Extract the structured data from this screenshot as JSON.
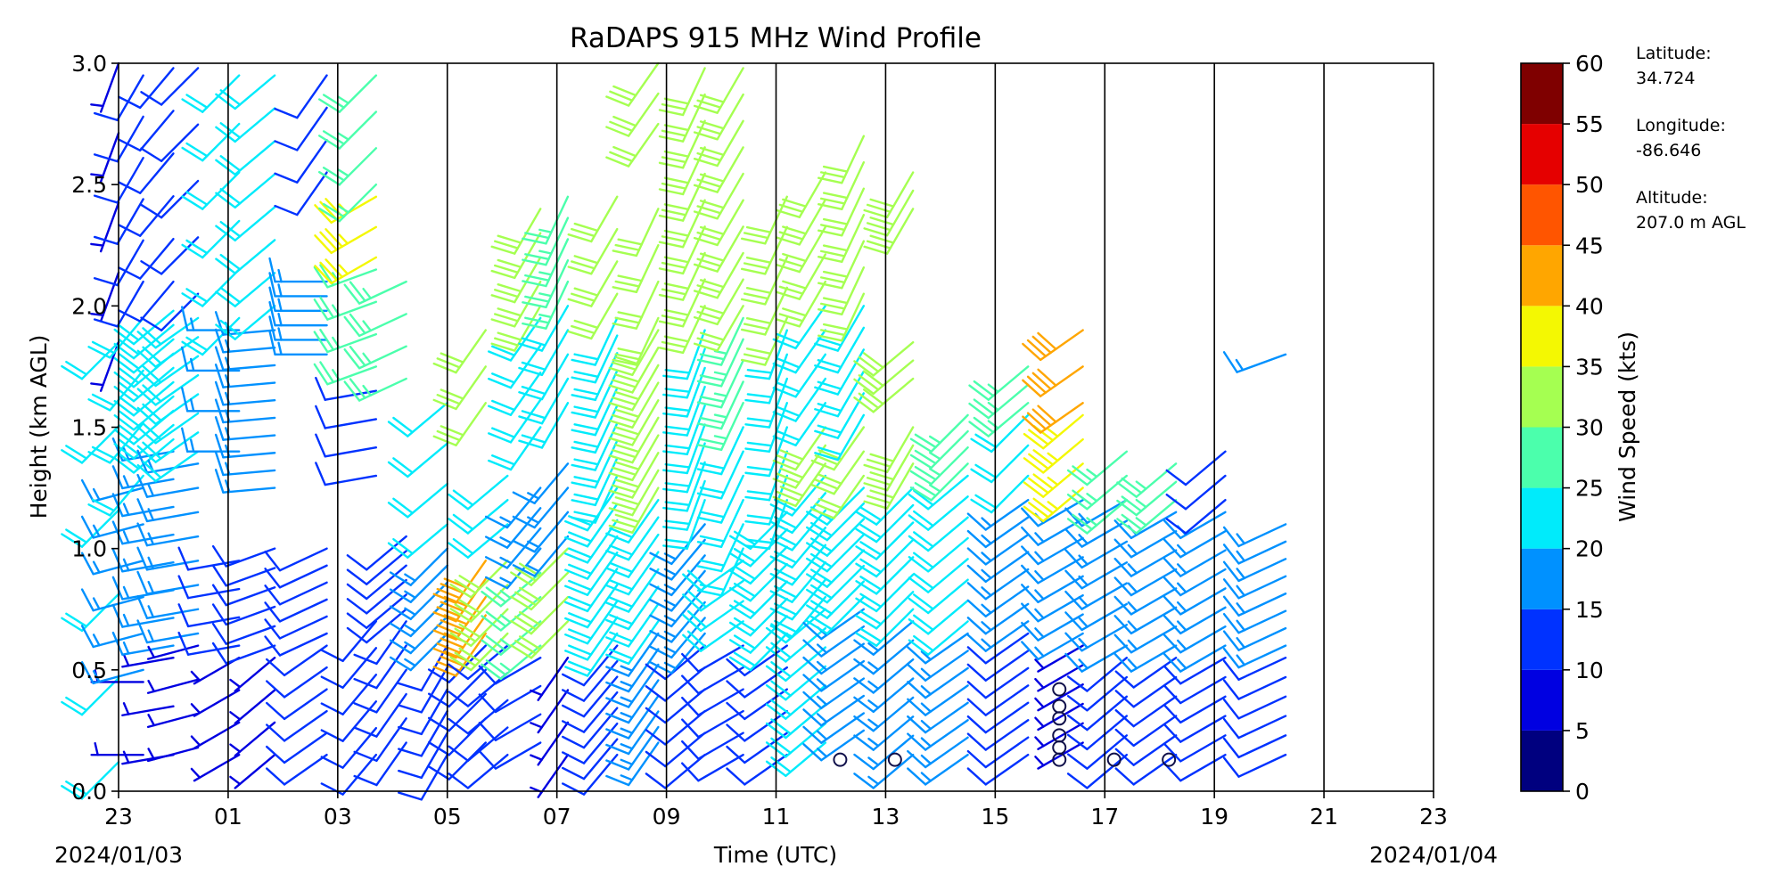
{
  "chart_data": {
    "type": "wind_barb_profile",
    "title": "RaDAPS 915 MHz Wind Profile",
    "xlabel": "Time (UTC)",
    "ylabel": "Height (km AGL)",
    "x_ticks": [
      "23",
      "01",
      "03",
      "05",
      "07",
      "09",
      "11",
      "13",
      "15",
      "17",
      "19",
      "21",
      "23"
    ],
    "start_date": "2024/01/03",
    "end_date": "2024/01/04",
    "y_ticks": [
      "0.0",
      "0.5",
      "1.0",
      "1.5",
      "2.0",
      "2.5",
      "3.0"
    ],
    "xlim_hours": [
      0,
      24
    ],
    "ylim_km": [
      0,
      3
    ],
    "colorbar": {
      "label": "Wind Speed (kts)",
      "levels": [
        0,
        5,
        10,
        15,
        20,
        25,
        30,
        35,
        40,
        45,
        50,
        55,
        60
      ],
      "tick_labels": [
        "0",
        "5",
        "10",
        "15",
        "20",
        "25",
        "30",
        "35",
        "40",
        "45",
        "50",
        "55",
        "60"
      ],
      "colors": [
        "#00007f",
        "#0000e1",
        "#0032ff",
        "#0091ff",
        "#00ebfb",
        "#4bffac",
        "#a5ff51",
        "#f4f802",
        "#ffa600",
        "#ff5500",
        "#e50000",
        "#7f0000"
      ]
    },
    "site": {
      "latitude_label": "Latitude:",
      "latitude": "34.724",
      "longitude_label": "Longitude:",
      "longitude": "-86.646",
      "altitude_label": "Altitude:",
      "altitude": "207.0 m AGL"
    },
    "calm_points": [
      {
        "t": 13.17,
        "h": 0.13
      },
      {
        "t": 14.17,
        "h": 0.13
      },
      {
        "t": 17.17,
        "h": 0.13
      },
      {
        "t": 17.17,
        "h": 0.18
      },
      {
        "t": 17.17,
        "h": 0.23
      },
      {
        "t": 17.17,
        "h": 0.3
      },
      {
        "t": 17.17,
        "h": 0.35
      },
      {
        "t": 17.17,
        "h": 0.42
      },
      {
        "t": 18.17,
        "h": 0.13
      },
      {
        "t": 19.17,
        "h": 0.13
      }
    ],
    "profiles": [
      {
        "t": 0.0,
        "segments": [
          [
            0.12,
            1.85,
            225,
            6,
            22
          ],
          [
            1.85,
            3.0,
            200,
            5,
            9
          ]
        ]
      },
      {
        "t": 0.45,
        "segments": [
          [
            0.15,
            0.45,
            270,
            2,
            8
          ],
          [
            0.5,
            1.25,
            255,
            6,
            16
          ],
          [
            1.3,
            1.95,
            220,
            4,
            20
          ],
          [
            2.1,
            2.95,
            210,
            6,
            10
          ]
        ]
      },
      {
        "t": 1.0,
        "segments": [
          [
            0.15,
            0.55,
            260,
            3,
            8
          ],
          [
            0.6,
            1.4,
            260,
            8,
            15
          ],
          [
            1.45,
            1.98,
            230,
            10,
            20
          ],
          [
            2.1,
            2.98,
            220,
            6,
            14
          ]
        ]
      },
      {
        "t": 1.45,
        "segments": [
          [
            0.18,
            0.6,
            255,
            4,
            9
          ],
          [
            0.65,
            1.35,
            260,
            8,
            16
          ],
          [
            1.4,
            1.95,
            235,
            8,
            22
          ],
          [
            2.05,
            2.98,
            225,
            5,
            13
          ]
        ]
      },
      {
        "t": 2.2,
        "segments": [
          [
            0.15,
            0.55,
            240,
            4,
            8
          ],
          [
            0.6,
            0.95,
            260,
            4,
            12
          ],
          [
            1.4,
            1.9,
            270,
            4,
            18
          ],
          [
            1.95,
            2.95,
            225,
            6,
            20
          ]
        ]
      },
      {
        "t": 2.85,
        "segments": [
          [
            0.15,
            0.55,
            230,
            4,
            9
          ],
          [
            0.6,
            1.0,
            250,
            6,
            13
          ],
          [
            1.25,
            1.9,
            265,
            10,
            19
          ],
          [
            2.0,
            2.95,
            230,
            8,
            22
          ]
        ]
      },
      {
        "t": 3.8,
        "segments": [
          [
            0.15,
            0.6,
            235,
            6,
            11
          ],
          [
            0.65,
            1.0,
            245,
            6,
            14
          ],
          [
            1.8,
            2.1,
            270,
            6,
            18
          ],
          [
            2.55,
            2.95,
            215,
            4,
            14
          ]
        ]
      },
      {
        "t": 4.7,
        "segments": [
          [
            0.15,
            0.7,
            220,
            6,
            11
          ],
          [
            1.3,
            1.65,
            260,
            4,
            14
          ],
          [
            1.75,
            2.15,
            250,
            4,
            25
          ],
          [
            2.2,
            2.45,
            240,
            3,
            38
          ],
          [
            2.5,
            2.95,
            225,
            4,
            28
          ]
        ]
      },
      {
        "t": 5.25,
        "segments": [
          [
            0.2,
            0.7,
            215,
            6,
            11
          ],
          [
            0.75,
            1.05,
            230,
            6,
            14
          ],
          [
            1.7,
            2.1,
            245,
            4,
            27
          ]
        ]
      },
      {
        "t": 6.0,
        "segments": [
          [
            0.15,
            0.6,
            210,
            6,
            12
          ],
          [
            0.65,
            1.0,
            225,
            6,
            18
          ],
          [
            1.1,
            1.6,
            230,
            4,
            20
          ]
        ]
      },
      {
        "t": 6.7,
        "segments": [
          [
            0.2,
            0.6,
            225,
            5,
            11
          ],
          [
            0.65,
            0.95,
            215,
            5,
            40
          ],
          [
            1.6,
            1.9,
            215,
            3,
            32
          ]
        ]
      },
      {
        "t": 7.1,
        "segments": [
          [
            0.15,
            0.6,
            230,
            5,
            10
          ],
          [
            0.65,
            0.95,
            225,
            4,
            30
          ],
          [
            1.1,
            1.3,
            230,
            3,
            22
          ]
        ]
      },
      {
        "t": 7.7,
        "segments": [
          [
            0.2,
            0.55,
            240,
            4,
            12
          ],
          [
            0.6,
            0.9,
            230,
            4,
            28
          ],
          [
            1.0,
            1.25,
            220,
            4,
            16
          ],
          [
            1.5,
            1.95,
            215,
            5,
            24
          ],
          [
            2.0,
            2.4,
            210,
            5,
            30
          ]
        ]
      },
      {
        "t": 8.2,
        "segments": [
          [
            0.15,
            0.55,
            215,
            4,
            9
          ],
          [
            0.7,
            1.0,
            225,
            4,
            30
          ],
          [
            1.05,
            1.35,
            220,
            4,
            18
          ],
          [
            1.6,
            2.0,
            210,
            5,
            24
          ],
          [
            2.1,
            2.45,
            205,
            5,
            28
          ]
        ]
      },
      {
        "t": 9.1,
        "segments": [
          [
            0.15,
            0.6,
            220,
            8,
            12
          ],
          [
            0.65,
            1.25,
            215,
            10,
            20
          ],
          [
            1.3,
            1.95,
            205,
            10,
            24
          ],
          [
            2.05,
            2.45,
            210,
            4,
            30
          ]
        ]
      },
      {
        "t": 9.85,
        "segments": [
          [
            0.2,
            0.65,
            215,
            8,
            18
          ],
          [
            0.7,
            1.2,
            215,
            8,
            22
          ],
          [
            1.25,
            1.9,
            210,
            10,
            30
          ],
          [
            1.95,
            2.4,
            205,
            4,
            32
          ],
          [
            2.75,
            3.0,
            215,
            3,
            32
          ]
        ]
      },
      {
        "t": 10.7,
        "segments": [
          [
            0.15,
            0.6,
            230,
            6,
            14
          ],
          [
            0.65,
            1.1,
            220,
            8,
            18
          ],
          [
            1.2,
            1.9,
            200,
            10,
            24
          ],
          [
            2.0,
            2.98,
            205,
            10,
            30
          ]
        ]
      },
      {
        "t": 11.4,
        "segments": [
          [
            0.15,
            0.6,
            240,
            6,
            12
          ],
          [
            0.7,
            0.95,
            235,
            4,
            24
          ],
          [
            1.0,
            1.5,
            205,
            6,
            20
          ],
          [
            1.6,
            1.95,
            205,
            5,
            28
          ],
          [
            2.0,
            2.98,
            210,
            10,
            31
          ]
        ]
      },
      {
        "t": 12.2,
        "segments": [
          [
            0.15,
            0.6,
            235,
            6,
            14
          ],
          [
            0.65,
            1.15,
            225,
            8,
            24
          ],
          [
            1.2,
            1.9,
            200,
            8,
            20
          ],
          [
            1.95,
            2.45,
            205,
            5,
            32
          ]
        ]
      },
      {
        "t": 12.9,
        "segments": [
          [
            0.2,
            0.75,
            230,
            8,
            20
          ],
          [
            0.8,
            1.3,
            220,
            8,
            22
          ],
          [
            1.35,
            1.5,
            215,
            3,
            34
          ],
          [
            1.6,
            2.0,
            215,
            5,
            22
          ],
          [
            2.1,
            2.55,
            210,
            5,
            32
          ]
        ]
      },
      {
        "t": 13.6,
        "segments": [
          [
            0.25,
            0.75,
            235,
            8,
            18
          ],
          [
            0.8,
            1.25,
            225,
            8,
            22
          ],
          [
            1.3,
            1.5,
            215,
            3,
            32
          ],
          [
            1.55,
            2.0,
            210,
            6,
            20
          ],
          [
            2.05,
            2.7,
            205,
            7,
            30
          ]
        ]
      },
      {
        "t": 14.5,
        "segments": [
          [
            0.15,
            0.7,
            230,
            8,
            18
          ],
          [
            0.75,
            1.25,
            225,
            8,
            20
          ],
          [
            1.35,
            1.5,
            210,
            3,
            30
          ],
          [
            1.7,
            1.85,
            230,
            3,
            30
          ],
          [
            2.4,
            2.55,
            210,
            3,
            32
          ]
        ]
      },
      {
        "t": 15.5,
        "segments": [
          [
            0.15,
            0.65,
            235,
            8,
            15
          ],
          [
            0.7,
            1.3,
            230,
            8,
            20
          ],
          [
            1.35,
            1.55,
            225,
            4,
            26
          ]
        ]
      },
      {
        "t": 16.6,
        "segments": [
          [
            0.15,
            0.65,
            235,
            8,
            14
          ],
          [
            0.7,
            1.2,
            235,
            8,
            18
          ],
          [
            1.3,
            1.55,
            225,
            3,
            24
          ],
          [
            1.6,
            1.75,
            230,
            3,
            28
          ]
        ]
      },
      {
        "t": 17.6,
        "segments": [
          [
            0.2,
            0.6,
            240,
            6,
            8
          ],
          [
            0.65,
            1.2,
            240,
            8,
            16
          ],
          [
            1.25,
            1.55,
            230,
            4,
            36
          ],
          [
            1.6,
            1.9,
            235,
            3,
            44
          ]
        ]
      },
      {
        "t": 18.4,
        "segments": [
          [
            0.15,
            0.55,
            230,
            6,
            10
          ],
          [
            0.6,
            1.2,
            240,
            8,
            15
          ],
          [
            1.2,
            1.4,
            230,
            3,
            26
          ]
        ]
      },
      {
        "t": 19.3,
        "segments": [
          [
            0.15,
            0.55,
            235,
            6,
            10
          ],
          [
            0.6,
            1.15,
            240,
            8,
            15
          ],
          [
            1.2,
            1.35,
            230,
            3,
            26
          ]
        ]
      },
      {
        "t": 20.2,
        "segments": [
          [
            0.15,
            0.55,
            240,
            6,
            10
          ],
          [
            0.6,
            1.15,
            240,
            8,
            16
          ],
          [
            1.2,
            1.4,
            230,
            3,
            10
          ]
        ]
      },
      {
        "t": 21.3,
        "segments": [
          [
            0.15,
            0.55,
            245,
            6,
            10
          ],
          [
            0.6,
            1.1,
            245,
            8,
            16
          ],
          [
            1.8,
            1.9,
            250,
            1,
            18
          ]
        ]
      }
    ]
  }
}
